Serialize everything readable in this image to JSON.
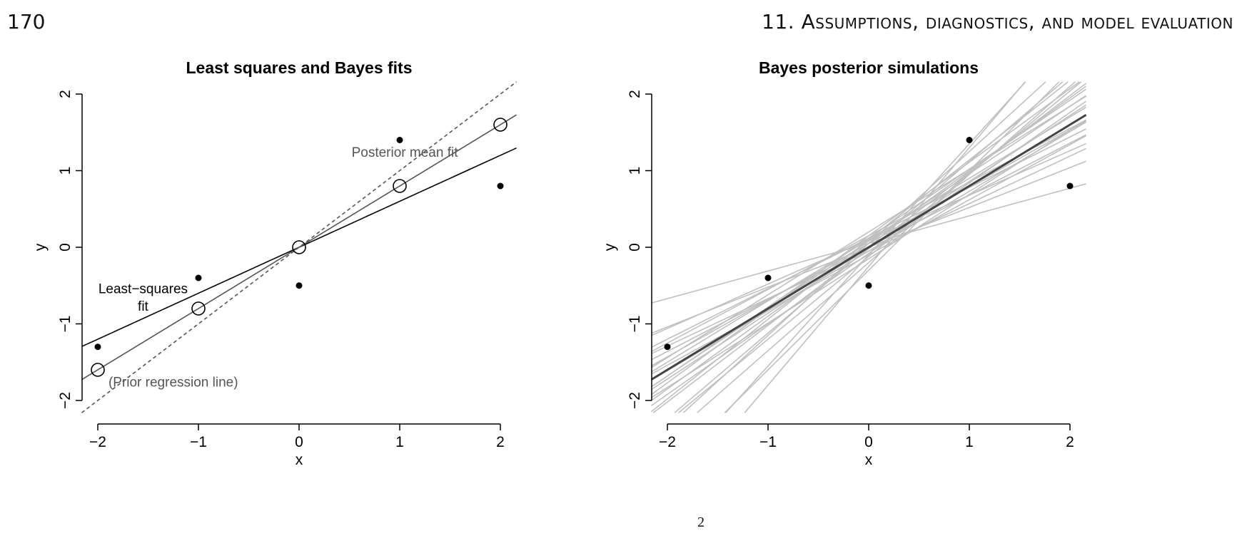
{
  "header": {
    "page_number": "170",
    "chapter_title": "11. Assumptions, diagnostics, and model evaluation"
  },
  "caption_fragment": "2",
  "chart_data": [
    {
      "type": "scatter",
      "title": "Least squares and Bayes fits",
      "xlabel": "x",
      "ylabel": "y",
      "xlim": [
        -2.16,
        2.16
      ],
      "ylim": [
        -2.16,
        2.16
      ],
      "xticks": [
        -2,
        -1,
        0,
        1,
        2
      ],
      "yticks": [
        -2,
        -1,
        0,
        1,
        2
      ],
      "xtick_labels": [
        "−2",
        "−1",
        "0",
        "1",
        "2"
      ],
      "ytick_labels": [
        "−2",
        "−1",
        "0",
        "1",
        "2"
      ],
      "points": {
        "x": [
          -2,
          -1,
          0,
          1,
          2
        ],
        "y": [
          -1.3,
          -0.4,
          -0.5,
          1.4,
          0.8
        ]
      },
      "fitted_points": {
        "x": [
          -2,
          -1,
          0,
          1,
          2
        ],
        "y": [
          -1.6,
          -0.8,
          0,
          0.8,
          1.6
        ]
      },
      "lines": [
        {
          "name": "Least-squares fit",
          "intercept": 0,
          "slope": 0.6,
          "color": "#000000",
          "style": "solid"
        },
        {
          "name": "Posterior mean fit",
          "intercept": 0,
          "slope": 0.8,
          "color": "#555555",
          "style": "solid"
        },
        {
          "name": "Prior regression line",
          "intercept": 0,
          "slope": 1.0,
          "color": "#555555",
          "style": "dashed"
        }
      ],
      "annotations": [
        {
          "text": "Least−squares",
          "x": -1.55,
          "y": -0.6,
          "color": "#000000"
        },
        {
          "text": "fit",
          "x": -1.55,
          "y": -0.83,
          "color": "#000000"
        },
        {
          "text": "Posterior mean fit",
          "x": 1.05,
          "y": 1.18,
          "color": "#555555"
        },
        {
          "text": "(Prior regression line)",
          "x": -1.25,
          "y": -1.82,
          "color": "#555555"
        }
      ]
    },
    {
      "type": "line",
      "title": "Bayes posterior simulations",
      "xlabel": "x",
      "ylabel": "y",
      "xlim": [
        -2.16,
        2.16
      ],
      "ylim": [
        -2.16,
        2.16
      ],
      "xticks": [
        -2,
        -1,
        0,
        1,
        2
      ],
      "yticks": [
        -2,
        -1,
        0,
        1,
        2
      ],
      "xtick_labels": [
        "−2",
        "−1",
        "0",
        "1",
        "2"
      ],
      "ytick_labels": [
        "−2",
        "−1",
        "0",
        "1",
        "2"
      ],
      "points": {
        "x": [
          -2,
          -1,
          0,
          1,
          2
        ],
        "y": [
          -1.3,
          -0.4,
          -0.5,
          1.4,
          0.8
        ]
      },
      "mean_line": {
        "intercept": 0,
        "slope": 0.8,
        "color": "#444444"
      },
      "simulations": {
        "color": "#c0c0c0",
        "lines": [
          {
            "intercept": 0.05,
            "slope": 0.36
          },
          {
            "intercept": 0.0,
            "slope": 0.52
          },
          {
            "intercept": 0.1,
            "slope": 0.58
          },
          {
            "intercept": -0.05,
            "slope": 0.62
          },
          {
            "intercept": 0.12,
            "slope": 0.66
          },
          {
            "intercept": 0.0,
            "slope": 0.68
          },
          {
            "intercept": -0.1,
            "slope": 0.72
          },
          {
            "intercept": 0.15,
            "slope": 0.7
          },
          {
            "intercept": 0.05,
            "slope": 0.74
          },
          {
            "intercept": -0.05,
            "slope": 0.78
          },
          {
            "intercept": 0.1,
            "slope": 0.8
          },
          {
            "intercept": 0.2,
            "slope": 0.82
          },
          {
            "intercept": -0.15,
            "slope": 0.84
          },
          {
            "intercept": 0.0,
            "slope": 0.86
          },
          {
            "intercept": 0.08,
            "slope": 0.88
          },
          {
            "intercept": 0.12,
            "slope": 0.9
          },
          {
            "intercept": -0.08,
            "slope": 0.92
          },
          {
            "intercept": 0.05,
            "slope": 0.95
          },
          {
            "intercept": 0.15,
            "slope": 0.96
          },
          {
            "intercept": -0.02,
            "slope": 1.0
          },
          {
            "intercept": 0.1,
            "slope": 1.04
          },
          {
            "intercept": -0.12,
            "slope": 1.08
          },
          {
            "intercept": 0.0,
            "slope": 1.12
          },
          {
            "intercept": -0.2,
            "slope": 1.15
          },
          {
            "intercept": 0.05,
            "slope": 1.2
          },
          {
            "intercept": -0.3,
            "slope": 1.3
          },
          {
            "intercept": -0.1,
            "slope": 1.45
          },
          {
            "intercept": -0.25,
            "slope": 1.55
          }
        ]
      }
    }
  ]
}
